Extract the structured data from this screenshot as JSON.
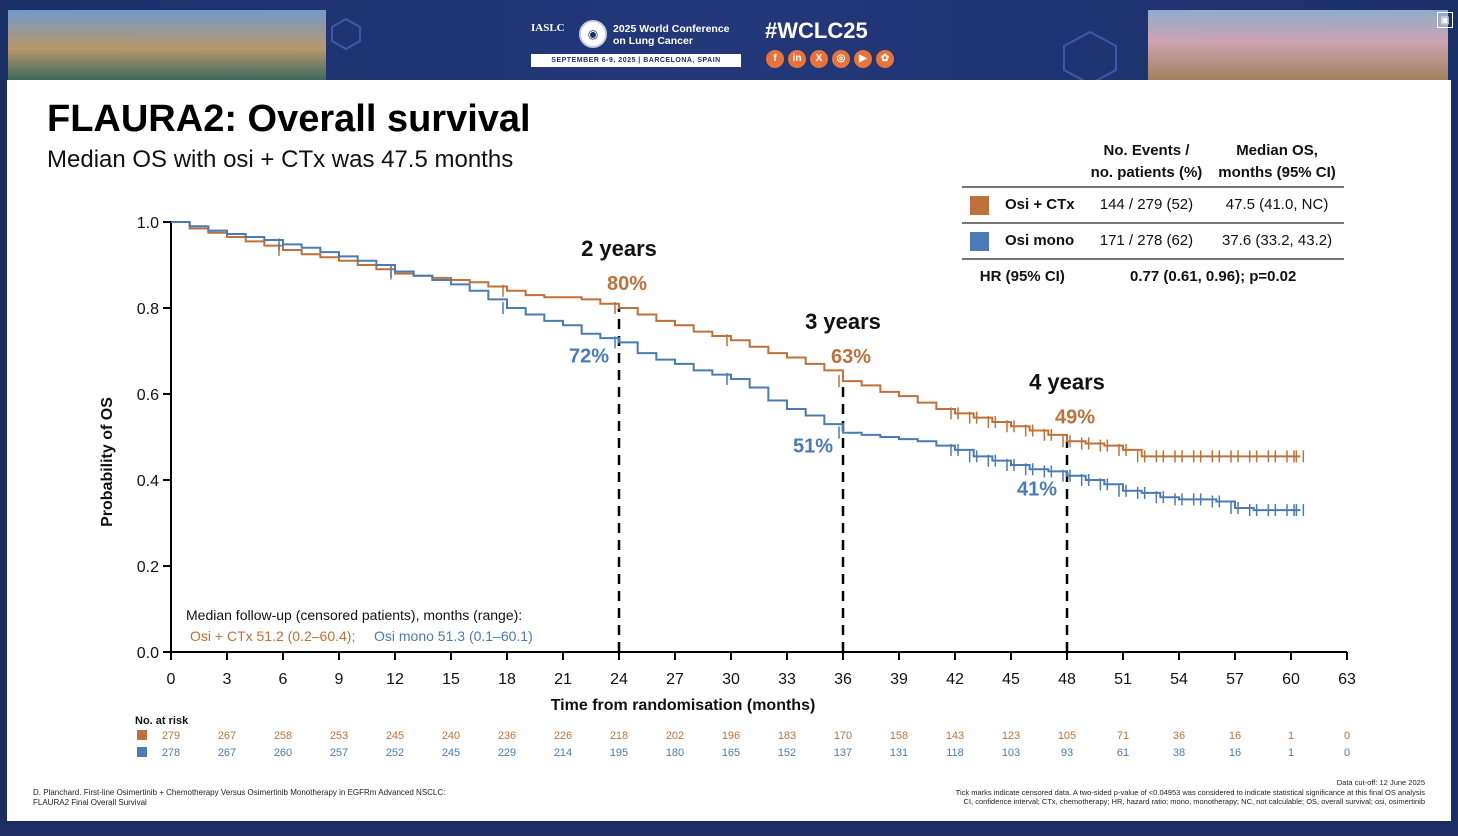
{
  "banner": {
    "logo_org": "IASLC",
    "conference_title": "2025 World Conference on Lung Cancer",
    "conference_dates": "SEPTEMBER 6-9, 2025  |  BARCELONA, SPAIN",
    "hashtag": "#WCLC25",
    "social_icons": [
      "facebook-icon",
      "linkedin-icon",
      "x-icon",
      "instagram-icon",
      "youtube-icon",
      "wechat-icon"
    ],
    "social_glyphs": [
      "f",
      "in",
      "X",
      "◎",
      "▶",
      "✿"
    ]
  },
  "slide": {
    "title": "FLAURA2: Overall survival",
    "subtitle": "Median OS with osi + CTx was 47.5 months"
  },
  "legend_table": {
    "headers": [
      "",
      "No. Events /\nno. patients (%)",
      "Median OS,\nmonths (95% CI)"
    ],
    "rows": [
      {
        "arm": "Osi + CTx",
        "events": "144 / 279 (52)",
        "median": "47.5 (41.0, NC)",
        "color": "#c0703a"
      },
      {
        "arm": "Osi mono",
        "events": "171 / 278 (62)",
        "median": "37.6 (33.2, 43.2)",
        "color": "#4a7bb7"
      }
    ],
    "hr_label": "HR (95% CI)",
    "hr_value": "0.77 (0.61, 0.96); p=0.02"
  },
  "chart_data": {
    "type": "line",
    "xlabel": "Time from randomisation (months)",
    "ylabel": "Probability of OS",
    "xlim": [
      0,
      63
    ],
    "ylim": [
      0,
      1.0
    ],
    "xticks": [
      0,
      3,
      6,
      9,
      12,
      15,
      18,
      21,
      24,
      27,
      30,
      33,
      36,
      39,
      42,
      45,
      48,
      51,
      54,
      57,
      60,
      63
    ],
    "yticks": [
      "0.0",
      "0.2",
      "0.4",
      "0.6",
      "0.8",
      "1.0"
    ],
    "colors": {
      "osi_ctx": "#c0703a",
      "osi_mono": "#4a7bb7"
    },
    "series": [
      {
        "name": "Osi + CTx",
        "key": "osi_ctx",
        "x": [
          0,
          1,
          2,
          3,
          4,
          5,
          6,
          7,
          8,
          9,
          10,
          11,
          12,
          13,
          14,
          15,
          16,
          17,
          18,
          19,
          20,
          21,
          22,
          23,
          24,
          25,
          26,
          27,
          28,
          29,
          30,
          31,
          32,
          33,
          34,
          35,
          36,
          37,
          38,
          39,
          40,
          41,
          42,
          43,
          44,
          45,
          46,
          47,
          48,
          49,
          50,
          51,
          52,
          53,
          54,
          55,
          56,
          57,
          58,
          59,
          60,
          60.5
        ],
        "y": [
          1.0,
          0.985,
          0.975,
          0.965,
          0.955,
          0.945,
          0.935,
          0.925,
          0.918,
          0.91,
          0.9,
          0.89,
          0.88,
          0.875,
          0.87,
          0.865,
          0.86,
          0.85,
          0.84,
          0.83,
          0.825,
          0.825,
          0.82,
          0.81,
          0.8,
          0.785,
          0.77,
          0.76,
          0.745,
          0.735,
          0.725,
          0.71,
          0.695,
          0.685,
          0.67,
          0.655,
          0.63,
          0.62,
          0.605,
          0.595,
          0.58,
          0.565,
          0.555,
          0.545,
          0.535,
          0.525,
          0.515,
          0.505,
          0.49,
          0.485,
          0.48,
          0.47,
          0.455,
          0.455,
          0.455,
          0.455,
          0.455,
          0.455,
          0.455,
          0.455,
          0.455,
          0.455
        ]
      },
      {
        "name": "Osi mono",
        "key": "osi_mono",
        "x": [
          0,
          1,
          2,
          3,
          4,
          5,
          6,
          7,
          8,
          9,
          10,
          11,
          12,
          13,
          14,
          15,
          16,
          17,
          18,
          19,
          20,
          21,
          22,
          23,
          24,
          25,
          26,
          27,
          28,
          29,
          30,
          31,
          32,
          33,
          34,
          35,
          36,
          37,
          38,
          39,
          40,
          41,
          42,
          43,
          44,
          45,
          46,
          47,
          48,
          49,
          50,
          51,
          52,
          53,
          54,
          55,
          56,
          57,
          58,
          59,
          60,
          60.5
        ],
        "y": [
          1.0,
          0.99,
          0.98,
          0.972,
          0.965,
          0.958,
          0.948,
          0.94,
          0.93,
          0.92,
          0.91,
          0.9,
          0.885,
          0.875,
          0.865,
          0.855,
          0.84,
          0.82,
          0.8,
          0.785,
          0.77,
          0.76,
          0.74,
          0.73,
          0.72,
          0.695,
          0.68,
          0.67,
          0.655,
          0.645,
          0.635,
          0.615,
          0.585,
          0.565,
          0.55,
          0.53,
          0.51,
          0.505,
          0.5,
          0.495,
          0.49,
          0.48,
          0.47,
          0.455,
          0.445,
          0.435,
          0.425,
          0.42,
          0.41,
          0.4,
          0.39,
          0.375,
          0.37,
          0.36,
          0.355,
          0.355,
          0.35,
          0.335,
          0.33,
          0.33,
          0.33,
          0.33
        ]
      }
    ],
    "landmarks": [
      {
        "x": 24,
        "label": "2 years",
        "osi_ctx": "80%",
        "osi_mono": "72%",
        "y_ctx": 0.8,
        "y_mono": 0.72
      },
      {
        "x": 36,
        "label": "3 years",
        "osi_ctx": "63%",
        "osi_mono": "51%",
        "y_ctx": 0.63,
        "y_mono": 0.51
      },
      {
        "x": 48,
        "label": "4 years",
        "osi_ctx": "49%",
        "osi_mono": "41%",
        "y_ctx": 0.49,
        "y_mono": 0.41
      }
    ],
    "followup_title": "Median follow-up (censored patients), months (range):",
    "followup_ctx": "Osi + CTx 51.2 (0.2–60.4);",
    "followup_mono": "Osi mono 51.3 (0.1–60.1)",
    "at_risk_label": "No. at risk",
    "at_risk_x": [
      0,
      3,
      6,
      9,
      12,
      15,
      18,
      21,
      24,
      27,
      30,
      33,
      36,
      39,
      42,
      45,
      48,
      51,
      54,
      57,
      60,
      63
    ],
    "at_risk_ctx": [
      "279",
      "267",
      "258",
      "253",
      "245",
      "240",
      "236",
      "226",
      "218",
      "202",
      "196",
      "183",
      "170",
      "158",
      "143",
      "123",
      "105",
      "71",
      "36",
      "16",
      "1",
      "0"
    ],
    "at_risk_mono": [
      "278",
      "267",
      "260",
      "257",
      "252",
      "245",
      "229",
      "214",
      "195",
      "180",
      "165",
      "152",
      "137",
      "131",
      "118",
      "103",
      "93",
      "61",
      "38",
      "16",
      "1",
      "0"
    ]
  },
  "footer": {
    "citation": "D. Planchard. First-line Osimertinib + Chemotherapy Versus Osimertinib Monotherapy in EGFRm Advanced NSCLC:\nFLAURA2 Final Overall Survival",
    "notes": "Data cut-off: 12 June 2025\nTick marks indicate censored data. A two-sided p-value of <0.04953 was considered to indicate statistical significance at this final OS analysis\nCI, confidence interval; CTx, chemotherapy; HR, hazard ratio; mono, monotherapy; NC, not calculable; OS, overall survival; osi, osimertinib"
  }
}
